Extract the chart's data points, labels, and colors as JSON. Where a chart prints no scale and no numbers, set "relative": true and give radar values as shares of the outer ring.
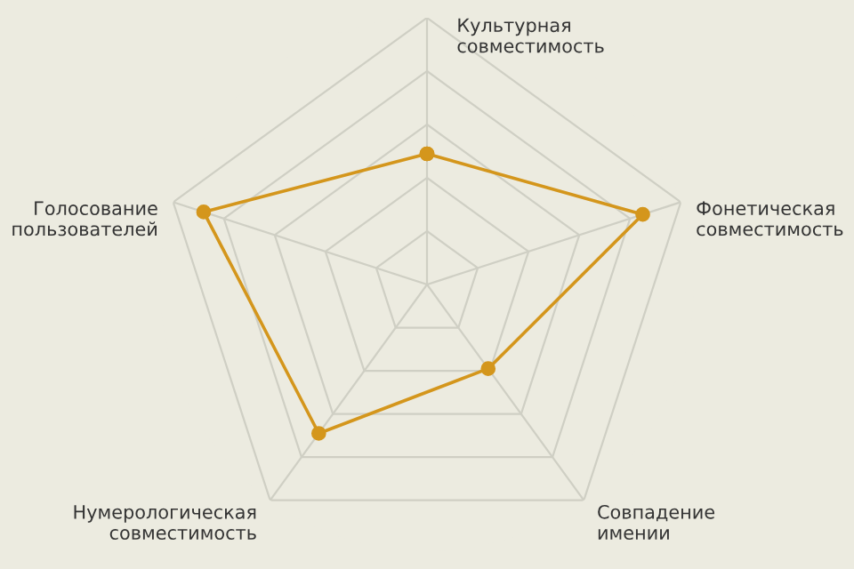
{
  "chart_data": {
    "type": "radar",
    "relative": true,
    "grid": true,
    "marker": "circle",
    "line_style": "solid",
    "categories": [
      "Культурная совместимость",
      "Фонетическая совместимость",
      "Совпадение имении",
      "Нумерологическая совместимость",
      "Голосование пользователей"
    ],
    "series": [
      {
        "color": "#d4961c",
        "values": [
          0.49,
          0.85,
          0.39,
          0.69,
          0.88
        ]
      }
    ]
  }
}
